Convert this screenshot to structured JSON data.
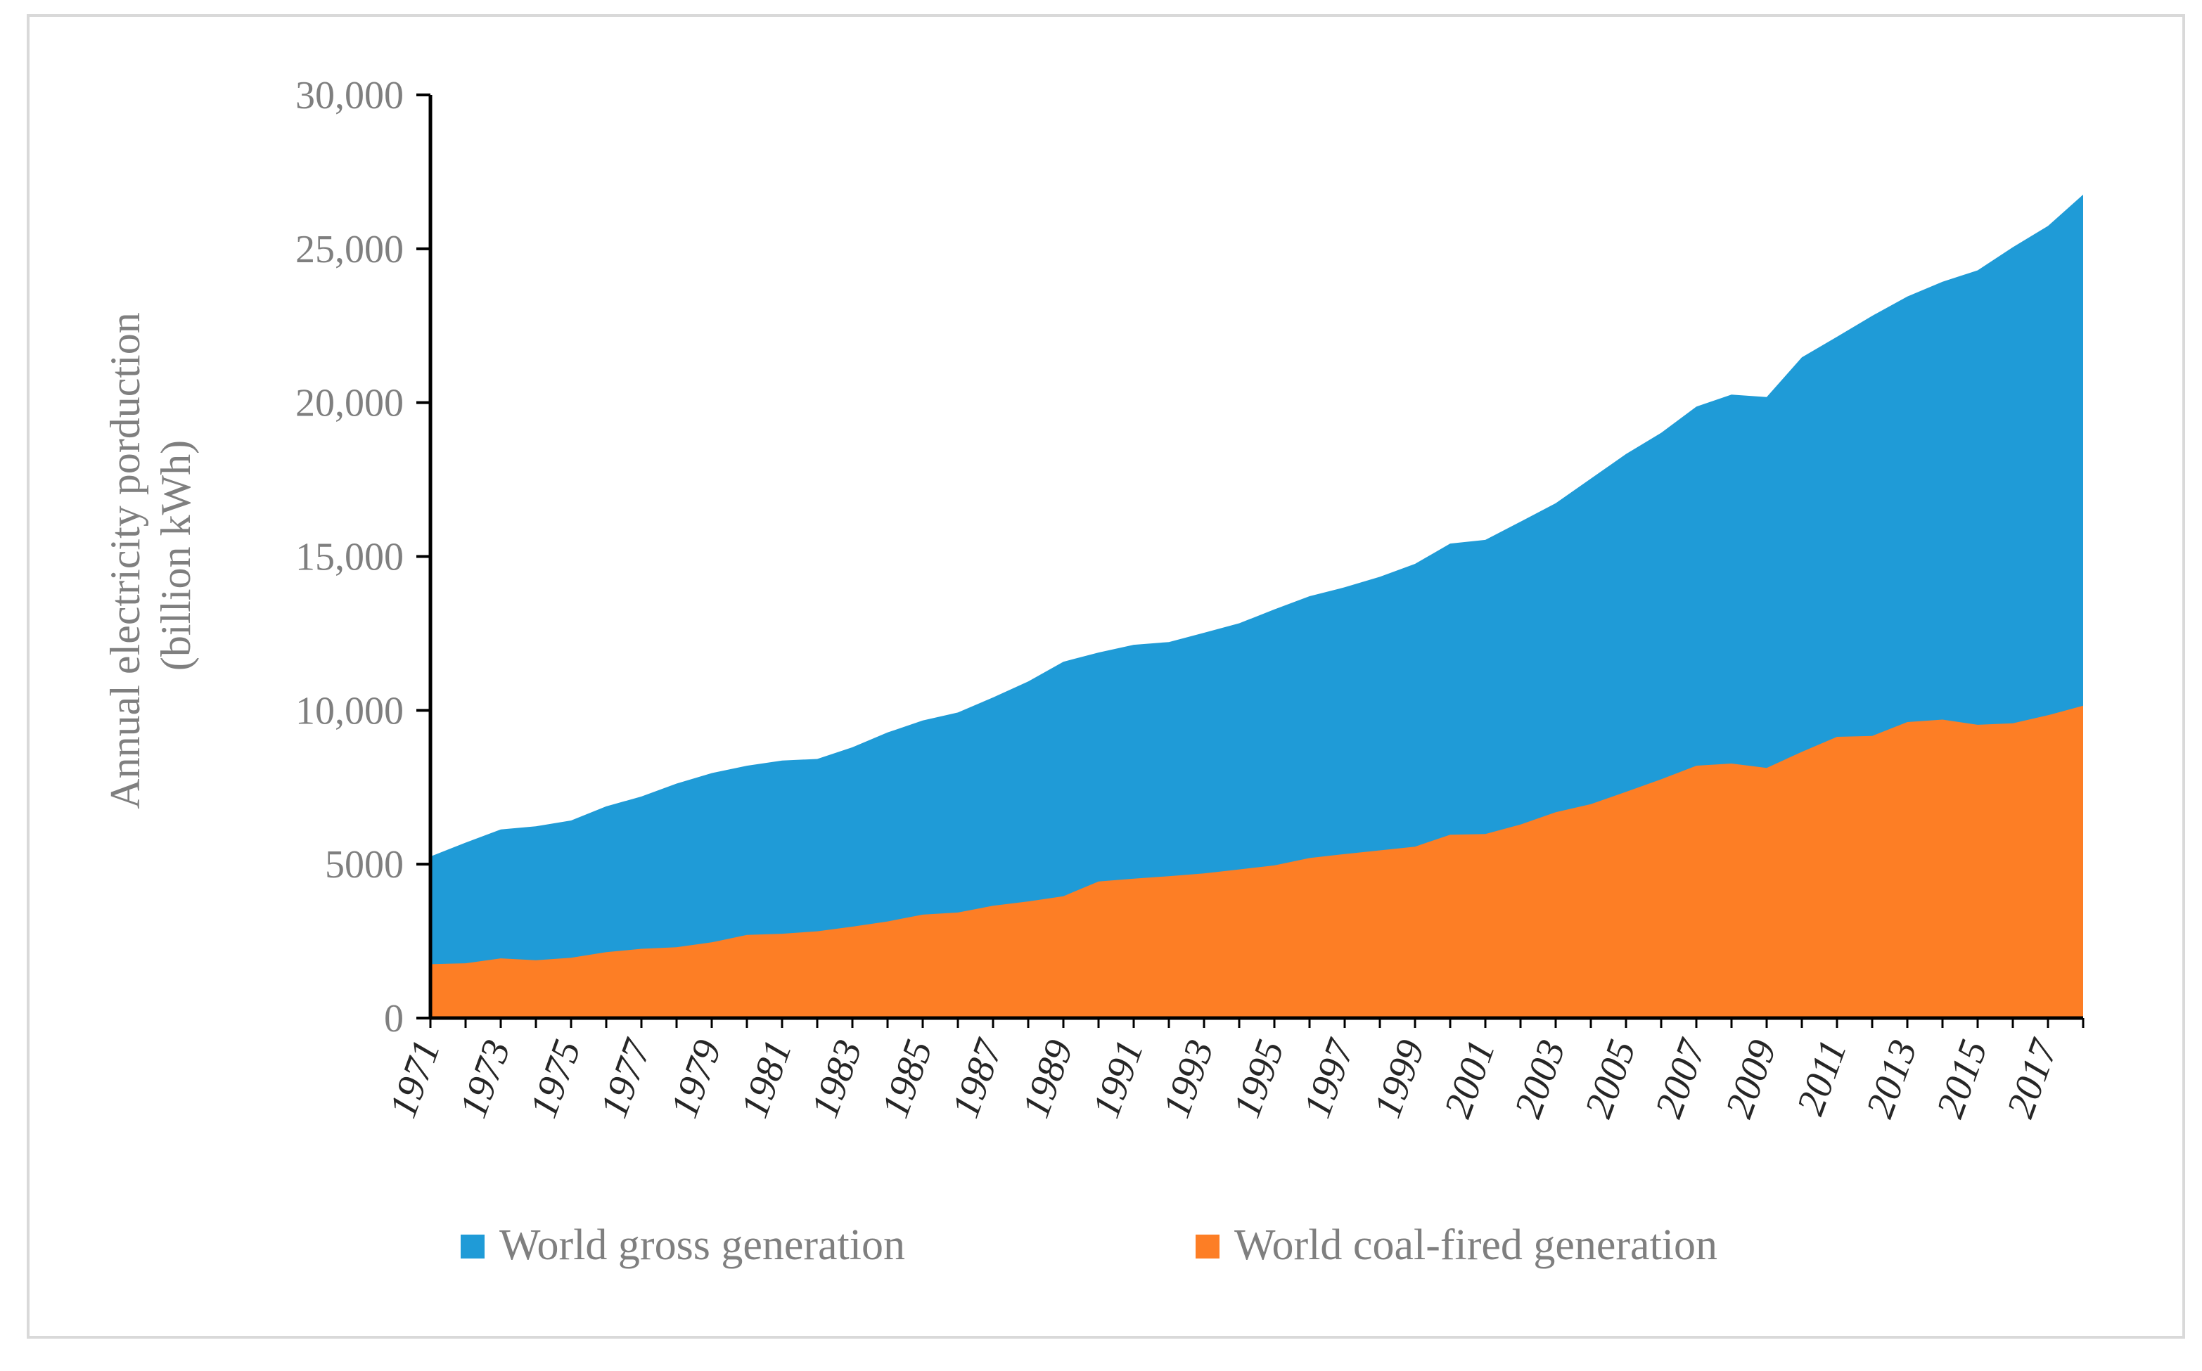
{
  "chart_data": {
    "type": "area",
    "title": "",
    "ylabel_line1": "Annual electricity porduction",
    "ylabel_line2": "(billion kWh)",
    "ylim": [
      0,
      30000
    ],
    "yticks": [
      0,
      5000,
      10000,
      15000,
      20000,
      25000,
      30000
    ],
    "ytick_labels": [
      "0",
      "5000",
      "10,000",
      "15,000",
      "20,000",
      "25,000",
      "30,000"
    ],
    "x": [
      1971,
      1972,
      1973,
      1974,
      1975,
      1976,
      1977,
      1978,
      1979,
      1980,
      1981,
      1982,
      1983,
      1984,
      1985,
      1986,
      1987,
      1988,
      1989,
      1990,
      1991,
      1992,
      1993,
      1994,
      1995,
      1996,
      1997,
      1998,
      1999,
      2000,
      2001,
      2002,
      2003,
      2004,
      2005,
      2006,
      2007,
      2008,
      2009,
      2010,
      2011,
      2012,
      2013,
      2014,
      2015,
      2016,
      2017,
      2018
    ],
    "xtick_labels": [
      "1971",
      "1973",
      "1975",
      "1977",
      "1979",
      "1981",
      "1983",
      "1985",
      "1987",
      "1989",
      "1991",
      "1993",
      "1995",
      "1997",
      "1999",
      "2001",
      "2003",
      "2005",
      "2007",
      "2009",
      "2011",
      "2013",
      "2015",
      "2017"
    ],
    "legend_position": "bottom",
    "grid": false,
    "series": [
      {
        "name": "World gross generation",
        "color": "#1f9bd7",
        "values": [
          5250,
          5700,
          6130,
          6230,
          6420,
          6880,
          7200,
          7620,
          7960,
          8200,
          8370,
          8420,
          8800,
          9280,
          9670,
          9930,
          10420,
          10940,
          11580,
          11880,
          12130,
          12220,
          12520,
          12830,
          13280,
          13710,
          14000,
          14340,
          14760,
          15420,
          15540,
          16130,
          16730,
          17530,
          18330,
          19020,
          19870,
          20260,
          20180,
          21470,
          22140,
          22820,
          23450,
          23930,
          24300,
          25050,
          25740,
          26760
        ]
      },
      {
        "name": "World coal-fired generation",
        "color": "#fd7e25",
        "values": [
          1750,
          1780,
          1940,
          1880,
          1960,
          2140,
          2250,
          2300,
          2460,
          2700,
          2740,
          2820,
          2970,
          3140,
          3360,
          3430,
          3650,
          3790,
          3960,
          4440,
          4530,
          4610,
          4700,
          4830,
          4960,
          5200,
          5330,
          5450,
          5570,
          5960,
          5980,
          6290,
          6690,
          6950,
          7350,
          7760,
          8200,
          8270,
          8130,
          8650,
          9140,
          9170,
          9620,
          9700,
          9530,
          9580,
          9840,
          10150
        ]
      }
    ]
  }
}
